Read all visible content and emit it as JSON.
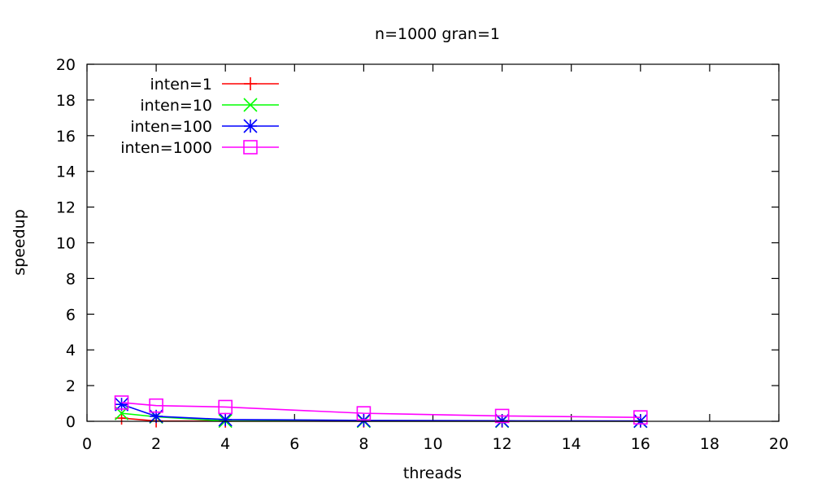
{
  "chart_data": {
    "type": "line",
    "title": "n=1000 gran=1",
    "xlabel": "threads",
    "ylabel": "speedup",
    "xlim": [
      0,
      20
    ],
    "ylim": [
      0,
      20
    ],
    "xticks": [
      0,
      2,
      4,
      6,
      8,
      10,
      12,
      14,
      16,
      18,
      20
    ],
    "yticks": [
      0,
      2,
      4,
      6,
      8,
      10,
      12,
      14,
      16,
      18,
      20
    ],
    "grid": false,
    "legend_position": "top-left",
    "series": [
      {
        "name": "inten=1",
        "color": "#ff0000",
        "marker": "plus",
        "x": [
          1,
          2,
          4,
          8,
          12,
          16
        ],
        "y": [
          0.18,
          0.02,
          0.01,
          0.01,
          0.01,
          0.01
        ]
      },
      {
        "name": "inten=10",
        "color": "#00ff00",
        "marker": "cross",
        "x": [
          1,
          2,
          4,
          8,
          12,
          16
        ],
        "y": [
          0.45,
          0.25,
          0.02,
          0.01,
          0.01,
          0.01
        ]
      },
      {
        "name": "inten=100",
        "color": "#0000ff",
        "marker": "star",
        "x": [
          1,
          2,
          4,
          8,
          12,
          16
        ],
        "y": [
          0.95,
          0.28,
          0.1,
          0.05,
          0.03,
          0.02
        ]
      },
      {
        "name": "inten=1000",
        "color": "#ff00ff",
        "marker": "square",
        "x": [
          1,
          2,
          4,
          8,
          12,
          16
        ],
        "y": [
          1.05,
          0.88,
          0.8,
          0.45,
          0.3,
          0.22
        ]
      }
    ]
  }
}
